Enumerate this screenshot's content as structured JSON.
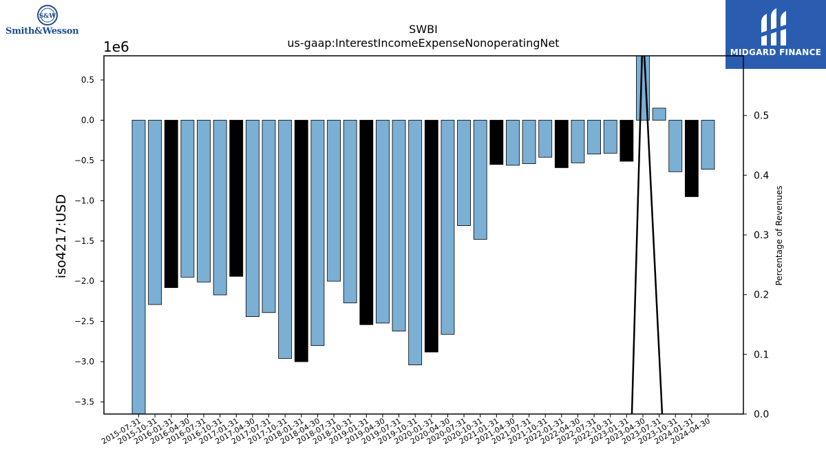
{
  "logos": {
    "left_text": "Smith&Wesson",
    "left_mark": "S&W",
    "right_text": "MIDGARD FINANCE"
  },
  "chart_data": {
    "type": "bar",
    "title": "SWBI",
    "subtitle": "us-gaap:InterestIncomeExpenseNonoperatingNet",
    "ylabel": "iso4217:USD",
    "y2label": "Percentage of Revenues",
    "offset_label": "1e6",
    "ylim": [
      -3.65,
      0.8
    ],
    "y2lim": [
      0.0,
      0.6
    ],
    "yticks": [
      0.5,
      0.0,
      -0.5,
      -1.0,
      -1.5,
      -2.0,
      -2.5,
      -3.0,
      -3.5
    ],
    "ytick_labels": [
      "0.5",
      "0.0",
      "−0.5",
      "−1.0",
      "−1.5",
      "−2.0",
      "−2.5",
      "−3.0",
      "−3.5"
    ],
    "y2ticks": [
      0.5,
      0.4,
      0.3,
      0.2,
      0.1,
      0.0
    ],
    "y2tick_labels": [
      "0.5",
      "0.4",
      "0.3",
      "0.2",
      "0.1",
      "0.0"
    ],
    "grid": false,
    "colors": {
      "quarter": "#7bafd4",
      "fiscal_q4": "#000000",
      "edge": "#000000",
      "line": "#000000"
    },
    "categories": [
      "2015-07-31",
      "2015-10-31",
      "2016-01-31",
      "2016-04-30",
      "2016-07-31",
      "2016-10-31",
      "2017-01-31",
      "2017-04-30",
      "2017-07-31",
      "2017-10-31",
      "2018-01-31",
      "2018-04-30",
      "2018-07-31",
      "2018-10-31",
      "2019-01-31",
      "2019-04-30",
      "2019-07-31",
      "2019-10-31",
      "2020-01-31",
      "2020-04-30",
      "2020-07-31",
      "2020-10-31",
      "2021-01-31",
      "2021-04-30",
      "2021-07-31",
      "2021-10-31",
      "2022-01-31",
      "2022-04-30",
      "2022-07-31",
      "2022-10-31",
      "2023-01-31",
      "2023-04-30",
      "2023-07-31",
      "2023-10-31",
      "2024-01-31",
      "2024-04-30"
    ],
    "values": [
      -3.65,
      -2.29,
      -2.08,
      -1.95,
      -2.01,
      -2.17,
      -1.94,
      -2.44,
      -2.39,
      -2.96,
      -3.0,
      -2.8,
      -2.0,
      -2.27,
      -2.54,
      -2.52,
      -2.62,
      -3.04,
      -2.88,
      -2.66,
      -1.31,
      -1.48,
      -0.55,
      -0.56,
      -0.54,
      -0.46,
      -0.59,
      -0.53,
      -0.42,
      -0.41,
      -0.51,
      0.8,
      0.15,
      -0.64,
      -0.95,
      -0.61
    ],
    "bar_colors": [
      "quarter",
      "quarter",
      "fiscal_q4",
      "quarter",
      "quarter",
      "quarter",
      "fiscal_q4",
      "quarter",
      "quarter",
      "quarter",
      "fiscal_q4",
      "quarter",
      "quarter",
      "quarter",
      "fiscal_q4",
      "quarter",
      "quarter",
      "quarter",
      "fiscal_q4",
      "quarter",
      "quarter",
      "quarter",
      "fiscal_q4",
      "quarter",
      "quarter",
      "quarter",
      "fiscal_q4",
      "quarter",
      "quarter",
      "quarter",
      "fiscal_q4",
      "quarter",
      "quarter",
      "quarter",
      "fiscal_q4",
      "quarter"
    ],
    "pct_revenue_line": [
      {
        "category": "2023-01-31",
        "value": 0.0
      },
      {
        "category": "2023-04-30",
        "value": 0.65
      },
      {
        "category": "2023-07-31",
        "value": 0.0
      }
    ]
  }
}
